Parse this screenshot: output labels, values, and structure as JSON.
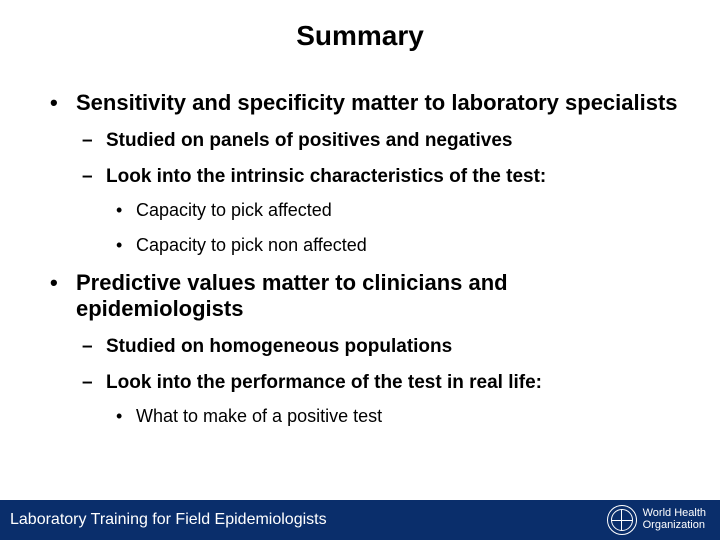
{
  "title": "Summary",
  "title_fontsize": 28,
  "title_color": "#000000",
  "body_color": "#000000",
  "background_color": "#ffffff",
  "lvl1_fontsize": 22,
  "lvl2_fontsize": 19,
  "lvl3_fontsize": 18,
  "bullets": [
    {
      "text": "Sensitivity and specificity matter to laboratory specialists",
      "children": [
        {
          "text": "Studied on panels of positives and negatives"
        },
        {
          "text": "Look into the intrinsic characteristics of the test:",
          "children": [
            {
              "text": "Capacity to pick affected"
            },
            {
              "text": "Capacity to pick non affected"
            }
          ]
        }
      ]
    },
    {
      "text": "Predictive values matter to clinicians and epidemiologists",
      "children": [
        {
          "text": "Studied on homogeneous populations"
        },
        {
          "text": "Look into the performance of the test in real life:",
          "children": [
            {
              "text": "What to make of a positive test"
            }
          ]
        }
      ]
    }
  ],
  "footer": {
    "text": "Laboratory Training for Field Epidemiologists",
    "fontsize": 16,
    "height": 40,
    "background_color": "#0a2e6b",
    "text_color": "#ffffff",
    "logo_line1": "World Health",
    "logo_line2": "Organization",
    "logo_fontsize": 11
  }
}
